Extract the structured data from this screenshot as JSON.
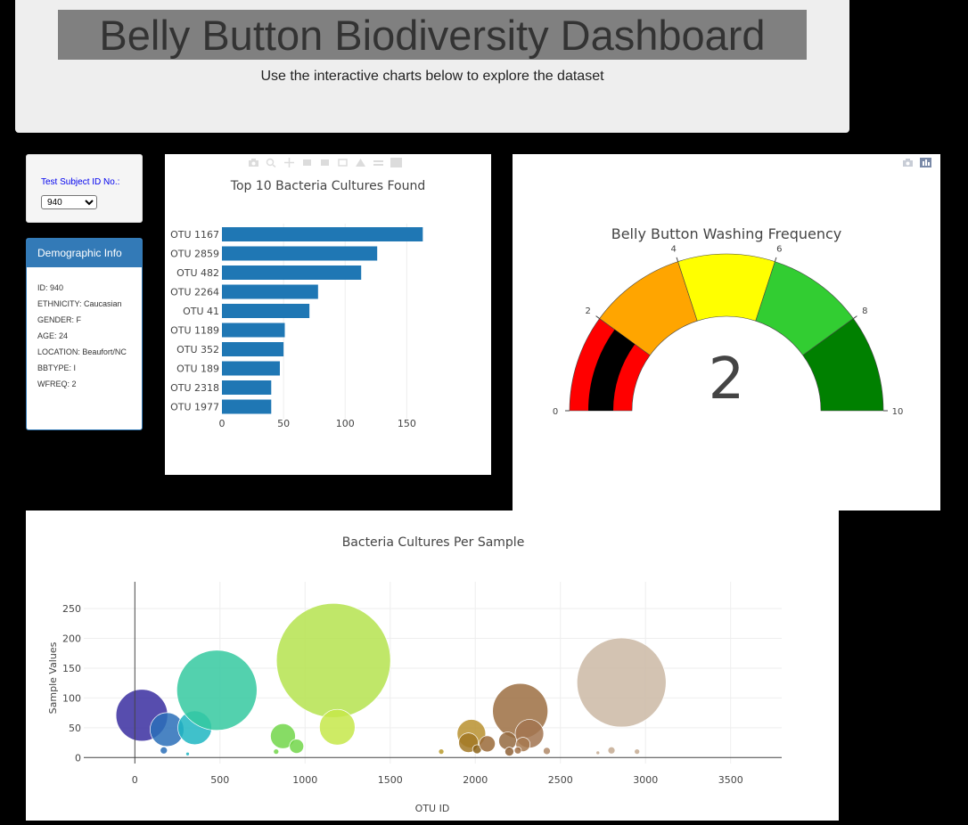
{
  "header": {
    "title": "Belly Button Biodiversity Dashboard",
    "subtitle": "Use the interactive charts below to explore the dataset"
  },
  "selector": {
    "label": "Test Subject ID No.:",
    "selected": "940"
  },
  "demographics": {
    "heading": "Demographic Info",
    "entries": [
      "ID: 940",
      "ETHNICITY: Caucasian",
      "GENDER: F",
      "AGE: 24",
      "LOCATION: Beaufort/NC",
      "BBTYPE: I",
      "WFREQ: 2"
    ]
  },
  "colors": {
    "bar": "#1f77b4",
    "demo_heading": "#337ab7",
    "page_background": "#000000"
  },
  "chart_data": [
    {
      "type": "bar",
      "orientation": "horizontal",
      "title": "Top 10 Bacteria Cultures Found",
      "categories": [
        "OTU 1167",
        "OTU 2859",
        "OTU 482",
        "OTU 2264",
        "OTU 41",
        "OTU 1189",
        "OTU 352",
        "OTU 189",
        "OTU 2318",
        "OTU 1977"
      ],
      "values": [
        163,
        126,
        113,
        78,
        71,
        51,
        50,
        47,
        40,
        40
      ],
      "xticks": [
        "0",
        "50",
        "100",
        "150"
      ],
      "xlim": [
        0,
        170
      ],
      "grid": true
    },
    {
      "type": "gauge",
      "title": "Belly Button Washing Frequency",
      "value": 2,
      "range": [
        0,
        10
      ],
      "ticks": [
        "0",
        "2",
        "4",
        "6",
        "8",
        "10"
      ],
      "steps": [
        {
          "range": [
            0,
            2
          ],
          "color": "#ff0000"
        },
        {
          "range": [
            2,
            4
          ],
          "color": "#ffa500"
        },
        {
          "range": [
            4,
            6
          ],
          "color": "#ffff00"
        },
        {
          "range": [
            6,
            8
          ],
          "color": "#32cd32"
        },
        {
          "range": [
            8,
            10
          ],
          "color": "#008000"
        }
      ],
      "bar_color": "#000000"
    },
    {
      "type": "scatter",
      "marker_mode": "bubble",
      "title": "Bacteria Cultures Per Sample",
      "xlabel": "OTU ID",
      "ylabel": "Sample Values",
      "xticks": [
        "0",
        "500",
        "1000",
        "1500",
        "2000",
        "2500",
        "3000",
        "3500"
      ],
      "yticks": [
        "0",
        "50",
        "100",
        "150",
        "200",
        "250"
      ],
      "xlim": [
        -300,
        3800
      ],
      "ylim": [
        -10,
        295
      ],
      "grid": true,
      "points": [
        {
          "x": 41,
          "y": 71,
          "r": 29,
          "color": "#3a2ea0"
        },
        {
          "x": 189,
          "y": 47,
          "r": 19,
          "color": "#2a6fb8"
        },
        {
          "x": 352,
          "y": 50,
          "r": 19,
          "color": "#1fb6c2"
        },
        {
          "x": 482,
          "y": 113,
          "r": 45,
          "color": "#35c9a0"
        },
        {
          "x": 1167,
          "y": 163,
          "r": 64,
          "color": "#b5e34f"
        },
        {
          "x": 1189,
          "y": 51,
          "r": 20,
          "color": "#c5e84a"
        },
        {
          "x": 870,
          "y": 36,
          "r": 14,
          "color": "#72d64a"
        },
        {
          "x": 950,
          "y": 19,
          "r": 8,
          "color": "#72d64a"
        },
        {
          "x": 830,
          "y": 10,
          "r": 3,
          "color": "#72d64a"
        },
        {
          "x": 170,
          "y": 12,
          "r": 4,
          "color": "#2a6fb8"
        },
        {
          "x": 310,
          "y": 6,
          "r": 2,
          "color": "#1fb6c2"
        },
        {
          "x": 1800,
          "y": 10,
          "r": 3,
          "color": "#b89a2a"
        },
        {
          "x": 1977,
          "y": 40,
          "r": 16,
          "color": "#b8902f"
        },
        {
          "x": 1960,
          "y": 25,
          "r": 11,
          "color": "#a27824"
        },
        {
          "x": 2010,
          "y": 14,
          "r": 5,
          "color": "#8b6218"
        },
        {
          "x": 2070,
          "y": 23,
          "r": 9,
          "color": "#9a6a38"
        },
        {
          "x": 2264,
          "y": 78,
          "r": 31,
          "color": "#9c6e42"
        },
        {
          "x": 2318,
          "y": 40,
          "r": 16,
          "color": "#a27450"
        },
        {
          "x": 2190,
          "y": 28,
          "r": 10,
          "color": "#946a40"
        },
        {
          "x": 2280,
          "y": 22,
          "r": 8,
          "color": "#a6784e"
        },
        {
          "x": 2200,
          "y": 10,
          "r": 5,
          "color": "#8e6036"
        },
        {
          "x": 2250,
          "y": 12,
          "r": 4,
          "color": "#a07046"
        },
        {
          "x": 2420,
          "y": 11,
          "r": 4,
          "color": "#b08a68"
        },
        {
          "x": 2859,
          "y": 126,
          "r": 50,
          "color": "#cbb8a5"
        },
        {
          "x": 2800,
          "y": 12,
          "r": 4,
          "color": "#c4aa92"
        },
        {
          "x": 2950,
          "y": 10,
          "r": 3,
          "color": "#c4aa92"
        },
        {
          "x": 2720,
          "y": 8,
          "r": 2,
          "color": "#c4aa92"
        }
      ]
    }
  ]
}
